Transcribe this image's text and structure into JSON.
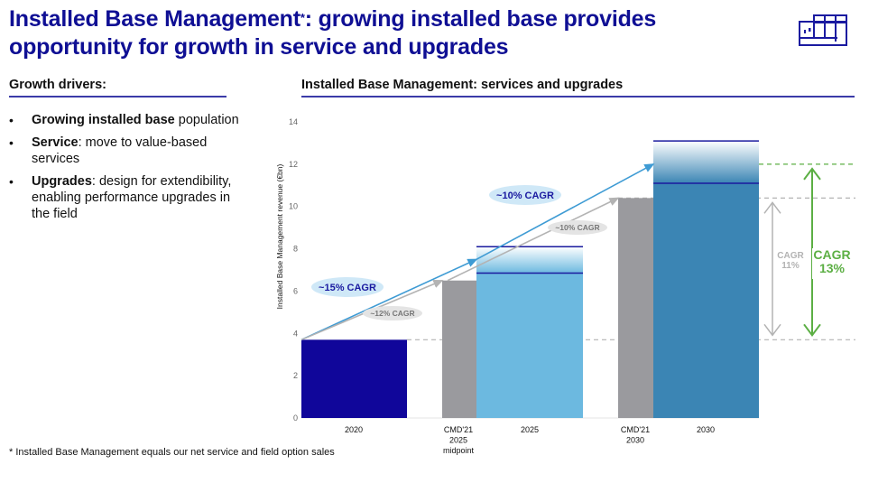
{
  "header": {
    "title_part1": "Installed Base Management",
    "title_sup": "*",
    "title_part2": ": growing installed base provides opportunity for growth in service and upgrades",
    "logo_icon": "machine-logo-icon"
  },
  "left": {
    "heading": "Growth drivers:",
    "bullets": [
      {
        "bold": "Growing installed base",
        "text": " population"
      },
      {
        "bold": "Service",
        "text": ": move to value-based services"
      },
      {
        "bold": "Upgrades",
        "text": ": design for extendibility, enabling performance upgrades in the field"
      }
    ],
    "bullet_glyph": "•"
  },
  "right": {
    "heading": "Installed Base Management: services and upgrades"
  },
  "footnote": "* Installed Base Management equals our net service and field option sales",
  "colors": {
    "brand": "#0F0F94",
    "bar_2020": "#10069A",
    "bar_cmd": "#9A9A9E",
    "bar_2025": "#6CB9E0",
    "bar_2030": "#3B85B4",
    "range_line": "#1A1A9E",
    "arrow_blue": "#3E9BD4",
    "arrow_grey": "#B3B3B3",
    "green": "#5CAF44",
    "bubble_blue": "#CFE8F7",
    "bubble_grey": "#E4E4E4"
  },
  "chart_data": {
    "type": "bar",
    "title": "Installed Base Management: services and upgrades",
    "xlabel": "",
    "ylabel": "Installed Base Management revenue (€bn)",
    "ylim": [
      0,
      14
    ],
    "yticks": [
      0,
      2,
      4,
      6,
      8,
      10,
      12,
      14
    ],
    "grid": false,
    "categories": [
      {
        "key": "2020",
        "label": [
          "2020"
        ]
      },
      {
        "key": "cmd2025",
        "label": [
          "CMD'21",
          "2025",
          "midpoint"
        ]
      },
      {
        "key": "2025",
        "label": [
          "2025"
        ]
      },
      {
        "key": "cmd2030",
        "label": [
          "CMD'21",
          "2030"
        ]
      },
      {
        "key": "2030",
        "label": [
          "2030"
        ]
      }
    ],
    "bars": [
      {
        "category": "2020",
        "value": 3.7,
        "style": "solid",
        "color": "#10069A"
      },
      {
        "category": "cmd2025",
        "value": 6.5,
        "style": "solid",
        "color": "#9A9A9E"
      },
      {
        "category": "2025",
        "range_low": 6.85,
        "range_high": 8.1,
        "style": "range",
        "color": "#6CB9E0"
      },
      {
        "category": "cmd2030",
        "value": 10.4,
        "style": "solid",
        "color": "#9A9A9E"
      },
      {
        "category": "2030",
        "range_low": 11.1,
        "range_high": 13.1,
        "style": "range",
        "color": "#3B85B4"
      }
    ],
    "reference_lines": [
      {
        "value": 3.7,
        "color": "#B3B3B3",
        "style": "dashed"
      },
      {
        "value": 10.4,
        "color": "#B3B3B3",
        "style": "dashed"
      },
      {
        "value": 12.0,
        "color": "#5CAF44",
        "style": "dashed"
      }
    ],
    "trend_arrows": [
      {
        "from": {
          "category": "2020",
          "value": 3.7
        },
        "to": {
          "category": "2025",
          "value": 7.5
        },
        "color": "#3E9BD4",
        "label": "~15% CAGR",
        "label_style": "bubble-blue"
      },
      {
        "from": {
          "category": "2020",
          "value": 3.7
        },
        "to": {
          "category": "cmd2025",
          "value": 6.5
        },
        "color": "#B3B3B3",
        "label": "~12% CAGR",
        "label_style": "bubble-grey"
      },
      {
        "from": {
          "category": "2025",
          "value": 7.5
        },
        "to": {
          "category": "2030",
          "value": 12.0
        },
        "color": "#3E9BD4",
        "label": "~10% CAGR",
        "label_style": "bubble-blue"
      },
      {
        "from": {
          "category": "cmd2025",
          "value": 6.5
        },
        "to": {
          "category": "cmd2030",
          "value": 10.4
        },
        "color": "#B3B3B3",
        "label": "~10% CAGR",
        "label_style": "bubble-grey"
      }
    ],
    "cagr_annotations": [
      {
        "label": [
          "CAGR",
          "11%"
        ],
        "from": 3.7,
        "to": 10.4,
        "color": "#B3B3B3"
      },
      {
        "label": [
          "CAGR",
          "13%"
        ],
        "from": 3.7,
        "to": 12.0,
        "color": "#5CAF44"
      }
    ]
  }
}
